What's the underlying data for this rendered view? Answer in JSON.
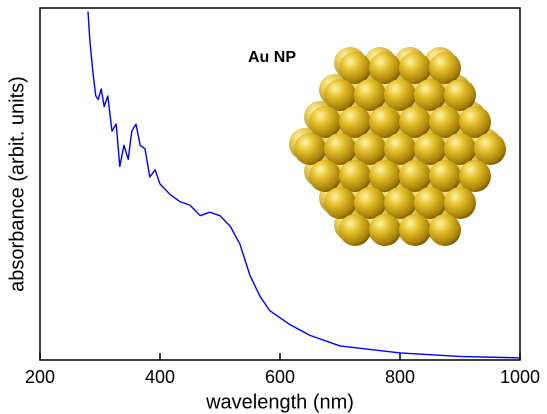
{
  "chart_data": {
    "type": "line",
    "x_label": "wavelength (nm)",
    "y_label": "absorbance (arbit. units)",
    "annotation": "Au NP",
    "xlim": [
      200,
      1000
    ],
    "xticks": [
      200,
      400,
      600,
      800,
      1000
    ],
    "ylim": [
      0,
      100
    ],
    "series": [
      {
        "color": "#0000ff",
        "x": [
          280,
          283,
          288,
          293,
          297,
          302,
          307,
          313,
          320,
          327,
          333,
          340,
          347,
          353,
          360,
          367,
          375,
          383,
          392,
          400,
          417,
          433,
          450,
          467,
          483,
          500,
          517,
          533,
          550,
          567,
          583,
          617,
          650,
          700,
          750,
          800,
          900,
          1000
        ],
        "values": [
          99,
          91,
          82,
          75,
          74,
          77,
          72,
          75,
          65,
          67,
          55,
          61,
          57,
          65,
          67,
          61,
          60,
          52,
          54,
          50,
          47,
          45,
          44,
          41,
          42,
          41,
          38,
          33,
          24,
          18,
          14,
          10,
          7,
          4,
          3,
          2,
          1,
          0.6
        ]
      }
    ]
  }
}
